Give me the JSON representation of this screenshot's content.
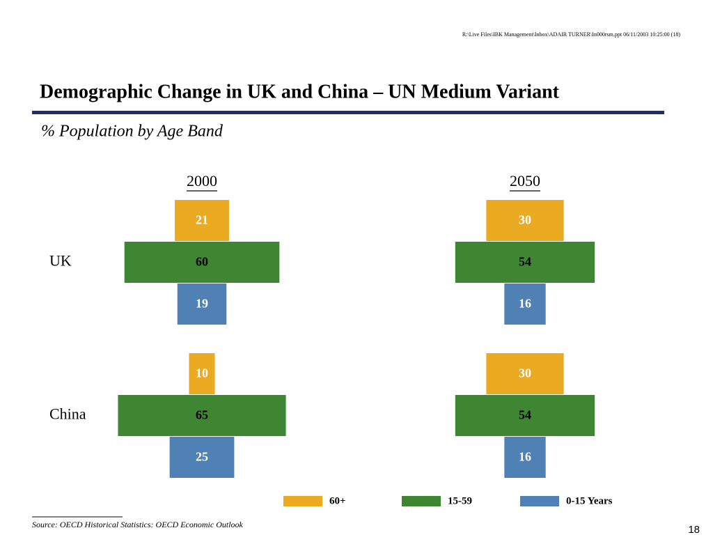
{
  "header": {
    "file_path": "R:\\Live Files\\IBK Management\\Inbox\\ADAIR TURNER\\In000rsm.ppt 06/11/2003 10:25:00 (18)",
    "title": "Demographic Change in UK and China – UN Medium Variant",
    "subtitle": "% Population by Age Band"
  },
  "chart_data": {
    "type": "pyramid-grid",
    "columns": [
      "2000",
      "2050"
    ],
    "rows": [
      "UK",
      "China"
    ],
    "series": [
      {
        "name": "60+",
        "color": "#eaaa22",
        "label_color": "#ffffff",
        "values": [
          21,
          30,
          10,
          30
        ]
      },
      {
        "name": "15-59",
        "color": "#3e8632",
        "label_color": "#000000",
        "values": [
          60,
          54,
          65,
          54
        ]
      },
      {
        "name": "0-15 Years",
        "color": "#4f81b5",
        "label_color": "#ffffff",
        "values": [
          19,
          16,
          25,
          16
        ]
      }
    ]
  },
  "footer": {
    "source": "Source: OECD Historical Statistics: OECD Economic Outlook",
    "page_number": "18"
  }
}
